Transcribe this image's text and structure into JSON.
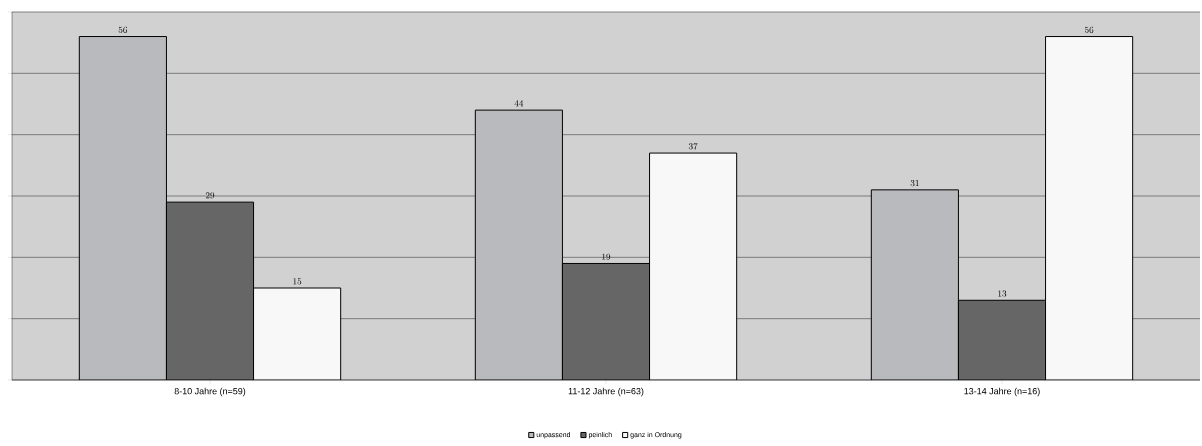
{
  "chart_data": {
    "type": "bar",
    "categories": [
      "8-10 Jahre (n=59)",
      "11-12 Jahre (n=63)",
      "13-14 Jahre (n=16)"
    ],
    "series": [
      {
        "name": "unpassend",
        "color": "#b8babd",
        "values": [
          56,
          44,
          31
        ]
      },
      {
        "name": "peinlich",
        "color": "#666666",
        "values": [
          29,
          19,
          13
        ]
      },
      {
        "name": "ganz in Ordnung",
        "color": "#f8f8f8",
        "values": [
          15,
          37,
          56
        ]
      }
    ],
    "ylim": [
      0,
      60
    ],
    "yticks": [
      {
        "value": 0,
        "label": null
      },
      {
        "value": 10,
        "label": null
      },
      {
        "value": 20,
        "label": null
      },
      {
        "value": 30,
        "label": null
      },
      {
        "value": 40,
        "label": null
      },
      {
        "value": 50,
        "label": null
      },
      {
        "value": 60,
        "label": null
      }
    ],
    "tick_labels": "x",
    "grid": "y",
    "data_labels": true,
    "legend": "bottom"
  }
}
